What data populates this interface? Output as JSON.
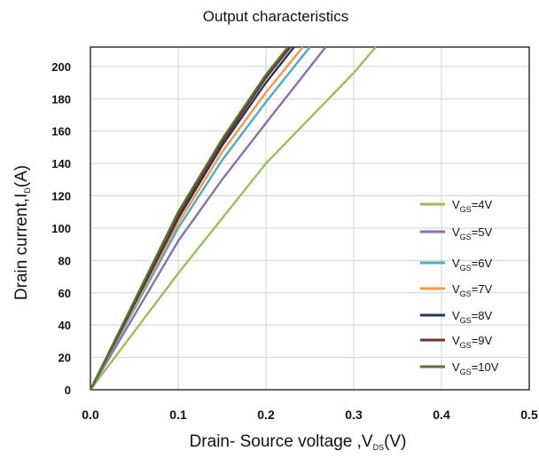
{
  "chart_data": {
    "type": "line",
    "title": "Output characteristics",
    "xlabel": {
      "main": "Drain- Source voltage ,V",
      "sub": "DS",
      "suffix": "(V)"
    },
    "ylabel": {
      "main": "Drain current,I",
      "sub": "D",
      "suffix": "(A)"
    },
    "xlim": [
      0,
      0.5
    ],
    "ylim": [
      0,
      212
    ],
    "x_ticks": [
      "0.0",
      "0.1",
      "0.2",
      "0.3",
      "0.4",
      "0.5"
    ],
    "y_ticks": [
      "0",
      "20",
      "40",
      "60",
      "80",
      "100",
      "120",
      "140",
      "160",
      "180",
      "200"
    ],
    "grid": true,
    "legend_position": "right",
    "series": [
      {
        "name": "V|GS|=4V",
        "color": "#9bbf5a",
        "points": [
          [
            0,
            0
          ],
          [
            0.1,
            72
          ],
          [
            0.2,
            140
          ],
          [
            0.3,
            196
          ],
          [
            0.325,
            212
          ]
        ]
      },
      {
        "name": "V|GS|=5V",
        "color": "#8a6fb0",
        "points": [
          [
            0,
            0
          ],
          [
            0.1,
            92
          ],
          [
            0.15,
            130
          ],
          [
            0.2,
            165
          ],
          [
            0.268,
            212
          ]
        ]
      },
      {
        "name": "V|GS|=6V",
        "color": "#4bacc6",
        "points": [
          [
            0,
            0
          ],
          [
            0.1,
            100
          ],
          [
            0.15,
            142
          ],
          [
            0.2,
            178
          ],
          [
            0.25,
            212
          ]
        ]
      },
      {
        "name": "V|GS|=7V",
        "color": "#f79646",
        "points": [
          [
            0,
            0
          ],
          [
            0.1,
            103
          ],
          [
            0.15,
            147
          ],
          [
            0.2,
            184
          ],
          [
            0.242,
            212
          ]
        ]
      },
      {
        "name": "V|GS|=8V",
        "color": "#1f3864",
        "points": [
          [
            0,
            0
          ],
          [
            0.1,
            106
          ],
          [
            0.15,
            151
          ],
          [
            0.2,
            190
          ],
          [
            0.232,
            212
          ]
        ]
      },
      {
        "name": "V|GS|=9V",
        "color": "#7b2c2c",
        "points": [
          [
            0,
            0
          ],
          [
            0.1,
            108
          ],
          [
            0.15,
            153
          ],
          [
            0.2,
            193
          ],
          [
            0.228,
            212
          ]
        ]
      },
      {
        "name": "V|GS|=10V",
        "color": "#4f7a2e",
        "points": [
          [
            0,
            0
          ],
          [
            0.1,
            110
          ],
          [
            0.15,
            155
          ],
          [
            0.2,
            195
          ],
          [
            0.225,
            212
          ]
        ]
      }
    ]
  }
}
